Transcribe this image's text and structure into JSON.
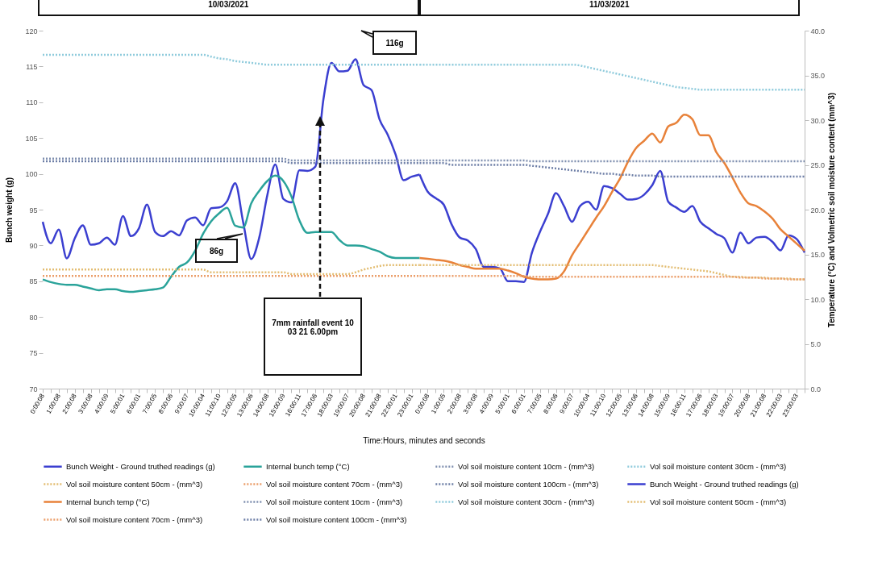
{
  "chart_data": {
    "type": "line",
    "xlabel": "Time:Hours, minutes and seconds",
    "ylabel": "Bunch weight (g)",
    "y2label": "Temperature (°C) and Volmetric soil moisture content (mm^3)",
    "categories": [
      "0:00:08",
      null,
      "1:00:08",
      null,
      "2:00:08",
      null,
      "3:00:08",
      null,
      "4:00:09",
      null,
      "5:00:01",
      null,
      "6:00:01",
      null,
      "7:00:05",
      null,
      "8:00:06",
      null,
      "9:00:07",
      null,
      "10:00:04",
      null,
      "11:00:10",
      null,
      "12:00:05",
      null,
      "13:00:06",
      null,
      "14:00:08",
      null,
      "15:00:09",
      null,
      "16:00:11",
      null,
      "17:00:06",
      null,
      "18:00:03",
      null,
      "19:00:07",
      null,
      "20:00:08",
      null,
      "21:00:08",
      null,
      "22:00:01",
      null,
      "23:00:01",
      null,
      "0:00:08",
      null,
      "1:00:05",
      null,
      "2:00:08",
      null,
      "3:00:08",
      null,
      "4:00:09",
      null,
      "5:00:01",
      null,
      "6:00:01",
      null,
      "7:00:05",
      null,
      "8:00:06",
      null,
      "9:00:07",
      null,
      "10:00:04",
      null,
      "11:00:10",
      null,
      "12:00:05",
      null,
      "13:00:06",
      null,
      "14:00:08",
      null,
      "15:00:09",
      null,
      "16:00:11",
      null,
      "17:00:06",
      null,
      "18:00:03",
      null,
      "19:00:07",
      null,
      "20:00:08",
      null,
      "21:00:08",
      null,
      "22:00:03",
      null,
      "23:00:03",
      null
    ],
    "series": [
      {
        "name": "Bunch Weight - Ground truthed readings (g)",
        "color": "#3b3fd0",
        "line_style": "solid",
        "values": [
          93.3,
          90.3,
          92.2,
          88.2,
          91.0,
          92.8,
          90.1,
          90.3,
          91.1,
          90.1,
          94.1,
          91.3,
          92.4,
          95.7,
          91.9,
          91.3,
          92.0,
          91.4,
          93.5,
          93.9,
          92.8,
          95.2,
          95.3,
          96.2,
          98.7,
          93.2,
          88.1,
          91.1,
          97.0,
          101.3,
          96.5,
          96.0,
          100.5,
          100.4,
          101.0,
          110.4,
          115.5,
          114.3,
          114.4,
          116.0,
          112.4,
          111.7,
          107.6,
          105.5,
          102.7,
          99.1,
          99.6,
          99.9,
          null,
          null,
          null,
          null,
          null,
          null,
          null,
          null,
          null,
          null,
          null,
          null,
          null,
          null,
          null,
          null,
          null,
          null,
          null,
          null,
          null,
          null,
          null,
          null,
          null,
          null,
          null,
          null,
          null,
          null,
          null,
          null,
          null,
          null,
          null,
          null,
          null,
          null,
          null,
          null,
          null,
          null,
          null,
          null,
          null,
          null,
          null,
          null
        ]
      },
      {
        "name": "Internal bunch temp (°C)",
        "color": "#2aa39a",
        "line_style": "solid",
        "axis": "y2",
        "values": [
          12.2,
          11.9,
          11.7,
          11.6,
          11.6,
          11.4,
          11.2,
          11.0,
          11.1,
          11.1,
          10.9,
          10.8,
          10.9,
          11.0,
          11.1,
          11.3,
          12.5,
          13.6,
          14.1,
          15.4,
          17.3,
          18.7,
          19.6,
          20.2,
          18.2,
          18.0,
          20.7,
          22.1,
          23.2,
          23.8,
          23.2,
          21.5,
          18.8,
          17.4,
          17.5,
          17.5,
          17.5,
          16.6,
          16.0,
          16.0,
          15.9,
          15.6,
          15.3,
          14.8,
          14.6,
          14.6,
          14.6,
          14.6,
          null,
          null,
          null,
          null,
          null,
          null,
          null,
          null,
          null,
          null,
          null,
          null,
          null,
          null,
          null,
          null,
          null,
          null,
          null,
          null,
          null,
          null,
          null,
          null,
          null,
          null,
          null,
          null,
          null,
          null,
          null,
          null,
          null,
          null,
          null,
          null,
          null,
          null,
          null,
          null,
          null,
          null,
          null,
          null,
          null,
          null,
          null,
          null
        ]
      },
      {
        "name": "Vol soil moisture content 10cm - (mm^3)",
        "color": "#8090b0",
        "line_style": "dotted",
        "axis": "y2",
        "values": [
          25.7,
          25.7,
          25.7,
          25.7,
          25.7,
          25.7,
          25.7,
          25.7,
          25.7,
          25.7,
          25.7,
          25.7,
          25.7,
          25.7,
          25.7,
          25.7,
          25.7,
          25.7,
          25.7,
          25.7,
          25.7,
          25.7,
          25.7,
          25.7,
          25.7,
          25.7,
          25.7,
          25.7,
          25.7,
          25.7,
          25.7,
          25.5,
          25.5,
          25.5,
          25.5,
          25.5,
          25.5,
          25.5,
          25.5,
          25.5,
          25.5,
          25.5,
          25.5,
          25.5,
          25.5,
          25.5,
          25.5,
          25.5,
          null,
          null,
          null,
          null,
          null,
          null,
          null,
          null,
          null,
          null,
          null,
          null,
          null,
          null,
          null,
          null,
          null,
          null,
          null,
          null,
          null,
          null,
          null,
          null,
          null,
          null,
          null,
          null,
          null,
          null,
          null,
          null,
          null,
          null,
          null,
          null,
          null,
          null,
          null,
          null,
          null,
          null,
          null,
          null,
          null,
          null,
          null,
          null
        ]
      },
      {
        "name": "Vol soil moisture content 30cm - (mm^3)",
        "color": "#8fcbdc",
        "line_style": "dotted",
        "axis": "y2",
        "values": [
          37.3,
          37.3,
          37.3,
          37.3,
          37.3,
          37.3,
          37.3,
          37.3,
          37.3,
          37.3,
          37.3,
          37.3,
          37.3,
          37.3,
          37.3,
          37.3,
          37.3,
          37.3,
          37.3,
          37.3,
          37.3,
          37.1,
          36.9,
          36.8,
          36.6,
          36.5,
          36.4,
          36.3,
          36.2,
          36.2,
          36.2,
          36.2,
          36.2,
          36.2,
          36.2,
          36.2,
          36.2,
          36.2,
          36.2,
          36.2,
          36.2,
          36.2,
          36.2,
          36.2,
          36.2,
          36.2,
          36.2,
          36.2,
          null,
          null,
          null,
          null,
          null,
          null,
          null,
          null,
          null,
          null,
          null,
          null,
          null,
          null,
          null,
          null,
          null,
          null,
          null,
          null,
          null,
          null,
          null,
          null,
          null,
          null,
          null,
          null,
          null,
          null,
          null,
          null,
          null,
          null,
          null,
          null,
          null,
          null,
          null,
          null,
          null,
          null,
          null,
          null,
          null,
          null,
          null,
          null
        ]
      },
      {
        "name": "Vol soil moisture content 50cm - (mm^3)",
        "color": "#e3bd72",
        "line_style": "dotted",
        "axis": "y2",
        "values": [
          13.3,
          13.3,
          13.3,
          13.3,
          13.3,
          13.3,
          13.3,
          13.3,
          13.3,
          13.3,
          13.3,
          13.3,
          13.3,
          13.3,
          13.3,
          13.3,
          13.3,
          13.3,
          13.3,
          13.3,
          13.3,
          13.0,
          13.0,
          13.0,
          13.0,
          13.0,
          13.0,
          13.0,
          13.0,
          13.0,
          13.0,
          12.8,
          12.8,
          12.8,
          12.8,
          12.8,
          12.8,
          12.8,
          12.8,
          13.0,
          13.3,
          13.5,
          13.7,
          13.8,
          13.8,
          13.8,
          13.8,
          13.8,
          null,
          null,
          null,
          null,
          null,
          null,
          null,
          null,
          null,
          null,
          null,
          null,
          null,
          null,
          null,
          null,
          null,
          null,
          null,
          null,
          null,
          null,
          null,
          null,
          null,
          null,
          null,
          null,
          null,
          null,
          null,
          null,
          null,
          null,
          null,
          null,
          null,
          null,
          null,
          null,
          null,
          null,
          null,
          null,
          null,
          null,
          null,
          null
        ]
      },
      {
        "name": "Vol soil moisture content 70cm - (mm^3)",
        "color": "#eb9e6a",
        "line_style": "dotted",
        "axis": "y2",
        "values": [
          12.6,
          12.6,
          12.6,
          12.6,
          12.6,
          12.6,
          12.6,
          12.6,
          12.6,
          12.6,
          12.6,
          12.6,
          12.6,
          12.6,
          12.6,
          12.6,
          12.6,
          12.6,
          12.6,
          12.6,
          12.6,
          12.6,
          12.6,
          12.6,
          12.6,
          12.6,
          12.6,
          12.6,
          12.6,
          12.6,
          12.6,
          12.6,
          12.6,
          12.6,
          12.6,
          12.6,
          12.6,
          12.6,
          12.6,
          12.6,
          12.6,
          12.6,
          12.6,
          12.6,
          12.6,
          12.6,
          12.6,
          12.6,
          null,
          null,
          null,
          null,
          null,
          null,
          null,
          null,
          null,
          null,
          null,
          null,
          null,
          null,
          null,
          null,
          null,
          null,
          null,
          null,
          null,
          null,
          null,
          null,
          null,
          null,
          null,
          null,
          null,
          null,
          null,
          null,
          null,
          null,
          null,
          null,
          null,
          null,
          null,
          null,
          null,
          null,
          null,
          null,
          null,
          null,
          null,
          null
        ]
      },
      {
        "name": "Vol soil moisture content 100cm - (mm^3)",
        "color": "#6d7ea6",
        "line_style": "dotted",
        "axis": "y2",
        "values": [
          25.4,
          25.4,
          25.4,
          25.4,
          25.4,
          25.4,
          25.4,
          25.4,
          25.4,
          25.4,
          25.4,
          25.4,
          25.4,
          25.4,
          25.4,
          25.4,
          25.4,
          25.4,
          25.4,
          25.4,
          25.4,
          25.4,
          25.4,
          25.4,
          25.4,
          25.4,
          25.4,
          25.4,
          25.4,
          25.4,
          25.4,
          25.2,
          25.2,
          25.2,
          25.2,
          25.2,
          25.2,
          25.2,
          25.2,
          25.2,
          25.2,
          25.2,
          25.2,
          25.2,
          25.2,
          25.2,
          25.2,
          25.2,
          null,
          null,
          null,
          null,
          null,
          null,
          null,
          null,
          null,
          null,
          null,
          null,
          null,
          null,
          null,
          null,
          null,
          null,
          null,
          null,
          null,
          null,
          null,
          null,
          null,
          null,
          null,
          null,
          null,
          null,
          null,
          null,
          null,
          null,
          null,
          null,
          null,
          null,
          null,
          null,
          null,
          null,
          null,
          null,
          null,
          null,
          null,
          null
        ]
      },
      {
        "name": "Bunch Weight - Ground truthed readings (g)",
        "color": "#3b3fd0",
        "line_style": "solid",
        "values": [
          null,
          null,
          null,
          null,
          null,
          null,
          null,
          null,
          null,
          null,
          null,
          null,
          null,
          null,
          null,
          null,
          null,
          null,
          null,
          null,
          null,
          null,
          null,
          null,
          null,
          null,
          null,
          null,
          null,
          null,
          null,
          null,
          null,
          null,
          null,
          null,
          null,
          null,
          null,
          null,
          null,
          null,
          null,
          null,
          null,
          null,
          null,
          99.9,
          97.5,
          96.6,
          95.7,
          92.9,
          91.1,
          90.7,
          89.5,
          87.0,
          87.0,
          86.8,
          85.0,
          85.0,
          84.9,
          89.0,
          91.9,
          94.4,
          97.3,
          95.5,
          93.3,
          95.5,
          96.1,
          95.0,
          98.3,
          98.0,
          97.2,
          96.4,
          96.5,
          97.1,
          98.4,
          100.4,
          96.1,
          95.3,
          94.7,
          95.5,
          93.3,
          92.4,
          91.6,
          91.0,
          89.0,
          91.8,
          90.3,
          91.1,
          91.2,
          90.5,
          89.3,
          91.4,
          90.9,
          89.0
        ]
      },
      {
        "name": "Internal bunch temp (°C)",
        "color": "#e8823a",
        "line_style": "solid",
        "axis": "y2",
        "values": [
          null,
          null,
          null,
          null,
          null,
          null,
          null,
          null,
          null,
          null,
          null,
          null,
          null,
          null,
          null,
          null,
          null,
          null,
          null,
          null,
          null,
          null,
          null,
          null,
          null,
          null,
          null,
          null,
          null,
          null,
          null,
          null,
          null,
          null,
          null,
          null,
          null,
          null,
          null,
          null,
          null,
          null,
          null,
          null,
          null,
          null,
          null,
          14.6,
          14.5,
          14.4,
          14.3,
          14.1,
          13.8,
          13.6,
          13.4,
          13.4,
          13.4,
          13.4,
          13.2,
          12.9,
          12.5,
          12.3,
          12.2,
          12.2,
          12.3,
          13.1,
          14.9,
          16.3,
          17.7,
          19.1,
          20.4,
          22.0,
          23.5,
          25.4,
          26.9,
          27.7,
          28.5,
          27.5,
          29.3,
          29.7,
          30.6,
          30.1,
          28.3,
          28.3,
          26.4,
          25.2,
          23.6,
          21.9,
          20.7,
          20.4,
          19.8,
          19.0,
          17.8,
          17.0,
          16.2,
          15.4
        ]
      },
      {
        "name": "Vol soil moisture content 10cm - (mm^3)",
        "color": "#8090b0",
        "line_style": "dotted",
        "axis": "y2",
        "values": [
          null,
          null,
          null,
          null,
          null,
          null,
          null,
          null,
          null,
          null,
          null,
          null,
          null,
          null,
          null,
          null,
          null,
          null,
          null,
          null,
          null,
          null,
          null,
          null,
          null,
          null,
          null,
          null,
          null,
          null,
          null,
          null,
          null,
          null,
          null,
          null,
          null,
          null,
          null,
          null,
          null,
          null,
          null,
          null,
          null,
          null,
          null,
          25.5,
          25.5,
          25.5,
          25.5,
          25.5,
          25.5,
          25.5,
          25.5,
          25.5,
          25.5,
          25.5,
          25.5,
          25.5,
          25.5,
          25.4,
          25.4,
          25.4,
          25.4,
          25.4,
          25.4,
          25.4,
          25.4,
          25.4,
          25.4,
          25.4,
          25.4,
          25.4,
          25.4,
          25.4,
          25.4,
          25.4,
          25.4,
          25.4,
          25.4,
          25.4,
          25.4,
          25.4,
          25.4,
          25.4,
          25.4,
          25.4,
          25.4,
          25.4,
          25.4,
          25.4,
          25.4,
          25.4,
          25.4,
          25.4
        ]
      },
      {
        "name": "Vol soil moisture content 30cm - (mm^3)",
        "color": "#8fcbdc",
        "line_style": "dotted",
        "axis": "y2",
        "values": [
          null,
          null,
          null,
          null,
          null,
          null,
          null,
          null,
          null,
          null,
          null,
          null,
          null,
          null,
          null,
          null,
          null,
          null,
          null,
          null,
          null,
          null,
          null,
          null,
          null,
          null,
          null,
          null,
          null,
          null,
          null,
          null,
          null,
          null,
          null,
          null,
          null,
          null,
          null,
          null,
          null,
          null,
          null,
          null,
          null,
          null,
          null,
          36.2,
          36.2,
          36.2,
          36.2,
          36.2,
          36.2,
          36.2,
          36.2,
          36.2,
          36.2,
          36.2,
          36.2,
          36.2,
          36.2,
          36.2,
          36.2,
          36.2,
          36.2,
          36.2,
          36.2,
          36.1,
          35.9,
          35.7,
          35.5,
          35.3,
          35.1,
          34.9,
          34.7,
          34.5,
          34.3,
          34.1,
          33.9,
          33.7,
          33.6,
          33.5,
          33.4,
          33.4,
          33.4,
          33.4,
          33.4,
          33.4,
          33.4,
          33.4,
          33.4,
          33.4,
          33.4,
          33.4,
          33.4,
          33.4
        ]
      },
      {
        "name": "Vol soil moisture content 50cm - (mm^3)",
        "color": "#e3bd72",
        "line_style": "dotted",
        "axis": "y2",
        "values": [
          null,
          null,
          null,
          null,
          null,
          null,
          null,
          null,
          null,
          null,
          null,
          null,
          null,
          null,
          null,
          null,
          null,
          null,
          null,
          null,
          null,
          null,
          null,
          null,
          null,
          null,
          null,
          null,
          null,
          null,
          null,
          null,
          null,
          null,
          null,
          null,
          null,
          null,
          null,
          null,
          null,
          null,
          null,
          null,
          null,
          null,
          null,
          13.8,
          13.8,
          13.8,
          13.8,
          13.8,
          13.8,
          13.8,
          13.8,
          13.8,
          13.8,
          13.8,
          13.8,
          13.8,
          13.8,
          13.8,
          13.8,
          13.8,
          13.8,
          13.8,
          13.8,
          13.8,
          13.8,
          13.8,
          13.8,
          13.8,
          13.8,
          13.8,
          13.8,
          13.8,
          13.8,
          13.7,
          13.6,
          13.5,
          13.4,
          13.3,
          13.2,
          13.1,
          12.9,
          12.7,
          12.5,
          12.5,
          12.4,
          12.4,
          12.4,
          12.3,
          12.3,
          12.3,
          12.2,
          12.2
        ]
      },
      {
        "name": "Vol soil moisture content 70cm - (mm^3)",
        "color": "#eb9e6a",
        "line_style": "dotted",
        "axis": "y2",
        "values": [
          null,
          null,
          null,
          null,
          null,
          null,
          null,
          null,
          null,
          null,
          null,
          null,
          null,
          null,
          null,
          null,
          null,
          null,
          null,
          null,
          null,
          null,
          null,
          null,
          null,
          null,
          null,
          null,
          null,
          null,
          null,
          null,
          null,
          null,
          null,
          null,
          null,
          null,
          null,
          null,
          null,
          null,
          null,
          null,
          null,
          null,
          null,
          12.6,
          12.6,
          12.6,
          12.6,
          12.6,
          12.6,
          12.6,
          12.6,
          12.6,
          12.6,
          12.6,
          12.6,
          12.6,
          12.6,
          12.5,
          12.5,
          12.5,
          12.5,
          12.5,
          12.5,
          12.5,
          12.5,
          12.5,
          12.5,
          12.5,
          12.5,
          12.5,
          12.5,
          12.5,
          12.5,
          12.5,
          12.5,
          12.5,
          12.5,
          12.5,
          12.5,
          12.5,
          12.5,
          12.5,
          12.5,
          12.4,
          12.4,
          12.4,
          12.3,
          12.3,
          12.3,
          12.2,
          12.2,
          12.2
        ]
      },
      {
        "name": "Vol soil moisture content 100cm - (mm^3)",
        "color": "#6d7ea6",
        "line_style": "dotted",
        "axis": "y2",
        "values": [
          null,
          null,
          null,
          null,
          null,
          null,
          null,
          null,
          null,
          null,
          null,
          null,
          null,
          null,
          null,
          null,
          null,
          null,
          null,
          null,
          null,
          null,
          null,
          null,
          null,
          null,
          null,
          null,
          null,
          null,
          null,
          null,
          null,
          null,
          null,
          null,
          null,
          null,
          null,
          null,
          null,
          null,
          null,
          null,
          null,
          null,
          null,
          25.2,
          25.2,
          25.2,
          25.2,
          25.0,
          25.0,
          25.0,
          25.0,
          25.0,
          25.0,
          25.0,
          25.0,
          25.0,
          25.0,
          24.9,
          24.8,
          24.7,
          24.6,
          24.5,
          24.4,
          24.3,
          24.2,
          24.1,
          24.0,
          24.0,
          23.9,
          23.9,
          23.8,
          23.8,
          23.8,
          23.7,
          23.7,
          23.7,
          23.7,
          23.7,
          23.7,
          23.7,
          23.7,
          23.7,
          23.7,
          23.7,
          23.7,
          23.7,
          23.7,
          23.7,
          23.7,
          23.7,
          23.7,
          23.7
        ]
      }
    ],
    "ylim": [
      70,
      120
    ],
    "yticks": [
      70,
      75,
      80,
      85,
      90,
      95,
      100,
      105,
      110,
      115,
      120
    ],
    "y2lim": [
      0,
      40
    ],
    "y2ticks": [
      {
        "value": 0,
        "label": "0.0"
      },
      {
        "value": 5,
        "label": "5.0"
      },
      {
        "value": 10,
        "label": "10.0"
      },
      {
        "value": 15,
        "label": "15.0"
      },
      {
        "value": 20,
        "label": "20.0"
      },
      {
        "value": 25,
        "label": "25.0"
      },
      {
        "value": 30,
        "label": "30.0"
      },
      {
        "value": 35,
        "label": "35.0"
      },
      {
        "value": 40,
        "label": "40.0"
      }
    ],
    "legend": "bottom",
    "annotations": [
      "10/03/2021",
      "11/03/2021",
      "116g",
      "86g",
      "7mm rainfall event 10 03 21 6.00pm"
    ]
  }
}
